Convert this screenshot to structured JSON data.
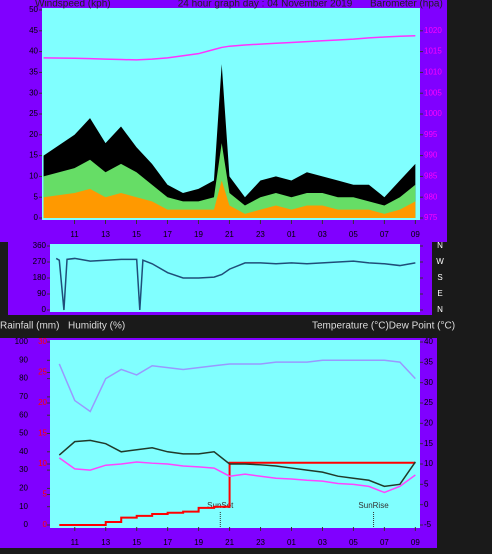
{
  "chart_data": [
    {
      "type": "area",
      "title": "24 hour graph day : 04 November 2019",
      "ylabel": "Windspeed (kph)",
      "y2label": "Barometer (hpa)",
      "xlim": [
        8.9,
        33.3
      ],
      "xticks": [
        11,
        13,
        15,
        17,
        19,
        21,
        23,
        {
          "value": 25,
          "label": "01"
        },
        {
          "value": 27,
          "label": "03"
        },
        {
          "value": 29,
          "label": "05"
        },
        {
          "value": 31,
          "label": "07"
        },
        {
          "value": 33,
          "label": "09"
        }
      ],
      "ylim": [
        0,
        50
      ],
      "yticks": [
        0,
        5,
        10,
        15,
        20,
        25,
        30,
        35,
        40,
        45,
        50
      ],
      "y2lim": [
        975,
        1025
      ],
      "y2ticks": [
        975,
        980,
        985,
        990,
        995,
        1000,
        1005,
        1010,
        1015,
        1020
      ],
      "x": [
        9,
        11,
        12,
        13,
        14,
        15,
        16,
        17,
        18,
        19,
        20,
        20.5,
        21,
        22,
        23,
        24,
        25,
        26,
        27,
        28,
        29,
        30,
        31,
        32,
        33
      ],
      "series": [
        {
          "color": "#000000",
          "values": [
            15,
            20,
            24,
            18,
            22,
            17,
            13,
            8,
            6,
            7,
            9,
            37,
            10,
            5,
            9,
            10,
            9,
            11,
            10,
            9,
            8,
            8,
            5,
            9,
            13
          ]
        },
        {
          "color": "#66dd66",
          "values": [
            10,
            12,
            14,
            11,
            13,
            11,
            8,
            5,
            4,
            4,
            5,
            18,
            6,
            3,
            5,
            6,
            5,
            6,
            6,
            5,
            5,
            4,
            3,
            5,
            8
          ]
        },
        {
          "color": "#ff9900",
          "values": [
            5,
            6,
            7,
            5,
            6,
            5,
            4,
            2,
            2,
            2,
            2,
            9,
            3,
            1,
            2,
            3,
            2,
            3,
            3,
            2,
            2,
            2,
            1,
            2,
            4
          ]
        },
        {
          "color": "#ff33ff",
          "type": "line",
          "axis": "y2",
          "values": [
            1013.5,
            1013.4,
            1013.3,
            1013.2,
            1013.1,
            1013,
            1013.2,
            1013.5,
            1014,
            1014.5,
            1015.5,
            1016,
            1016.3,
            1016.6,
            1016.8,
            1017,
            1017.2,
            1017.4,
            1017.6,
            1017.8,
            1018,
            1018.3,
            1018.5,
            1018.7,
            1018.8
          ]
        }
      ]
    },
    {
      "type": "line",
      "xlim": [
        9.4,
        33.3
      ],
      "ylim": [
        0,
        360
      ],
      "yticks": [
        0,
        90,
        180,
        270,
        360
      ],
      "y2lim": [
        0,
        360
      ],
      "y2ticks": [
        {
          "value": 360,
          "label": "N"
        },
        {
          "value": 270,
          "label": "W"
        },
        {
          "value": 180,
          "label": "S"
        },
        {
          "value": 90,
          "label": "E"
        },
        {
          "value": 0,
          "label": "N"
        }
      ],
      "x": [
        9.8,
        10,
        10.3,
        10.5,
        11,
        12,
        13,
        14,
        15,
        15.2,
        15.4,
        16,
        17,
        18,
        19,
        20,
        20.5,
        21,
        22,
        23,
        24,
        25,
        26,
        27,
        28,
        29,
        30,
        31,
        32,
        33
      ],
      "series": [
        {
          "color": "#1f4e79",
          "values": [
            290,
            280,
            0,
            285,
            290,
            275,
            280,
            285,
            285,
            0,
            280,
            260,
            210,
            180,
            180,
            185,
            200,
            230,
            265,
            265,
            260,
            265,
            260,
            265,
            270,
            275,
            265,
            260,
            250,
            265
          ]
        }
      ]
    },
    {
      "type": "line",
      "ylabel": "Humidity (%)",
      "y3label": "Rainfall (mm)",
      "y2label": "Temperature (°C)Dew Point (°C)",
      "xlim": [
        9.4,
        33.3
      ],
      "xticks": [
        11,
        13,
        15,
        17,
        19,
        21,
        23,
        {
          "value": 25,
          "label": "01"
        },
        {
          "value": 27,
          "label": "03"
        },
        {
          "value": 29,
          "label": "05"
        },
        {
          "value": 31,
          "label": "07"
        },
        {
          "value": 33,
          "label": "09"
        }
      ],
      "ylim": [
        0,
        100
      ],
      "yticks": [
        0,
        10,
        20,
        30,
        40,
        50,
        60,
        70,
        80,
        90,
        100
      ],
      "y3lim": [
        0,
        30
      ],
      "y3ticks": [
        0,
        5,
        10,
        15,
        20,
        25,
        30
      ],
      "y2lim": [
        -5,
        40
      ],
      "y2ticks": [
        -5,
        0,
        5,
        10,
        15,
        20,
        25,
        30,
        35,
        40
      ],
      "x": [
        10,
        11,
        12,
        13,
        14,
        15,
        16,
        17,
        18,
        19,
        20,
        21,
        22,
        23,
        24,
        25,
        26,
        27,
        28,
        29,
        30,
        31,
        32,
        33
      ],
      "series": [
        {
          "color": "#9999ff",
          "values": [
            88,
            68,
            62,
            80,
            85,
            82,
            87,
            86,
            85,
            86,
            87,
            88,
            88,
            88,
            89,
            89,
            89,
            90,
            90,
            90,
            90,
            90,
            89,
            80
          ]
        },
        {
          "color": "#ff0000",
          "axis": "y3",
          "step": true,
          "values": [
            0,
            0,
            0,
            0.5,
            1.2,
            1.5,
            1.8,
            2,
            2.2,
            2.8,
            3,
            10.2,
            10.2,
            10.2,
            10.2,
            10.2,
            10.2,
            10.2,
            10.2,
            10.2,
            10.2,
            10.2,
            10.2,
            10.2
          ]
        },
        {
          "color": "#203a2a",
          "axis": "y2",
          "values": [
            12.2,
            15.5,
            15.8,
            15,
            13,
            13.5,
            14,
            13,
            12.5,
            12.5,
            13,
            10,
            10,
            9.8,
            9.5,
            9,
            8.5,
            8,
            7,
            6.5,
            6,
            4.5,
            5,
            10.5
          ]
        },
        {
          "color": "#ff44ff",
          "axis": "y2",
          "values": [
            11.5,
            8.8,
            8.5,
            9.7,
            10,
            10.5,
            10.2,
            10,
            9.5,
            9.3,
            9,
            7,
            7.5,
            7,
            6.5,
            6.3,
            6,
            5.8,
            5.2,
            5,
            4.5,
            3,
            4.5,
            7.3
          ]
        }
      ],
      "annotations": [
        {
          "x": 20.4,
          "label": "SunSet"
        },
        {
          "x": 30.3,
          "label": "SunRise"
        }
      ]
    }
  ]
}
